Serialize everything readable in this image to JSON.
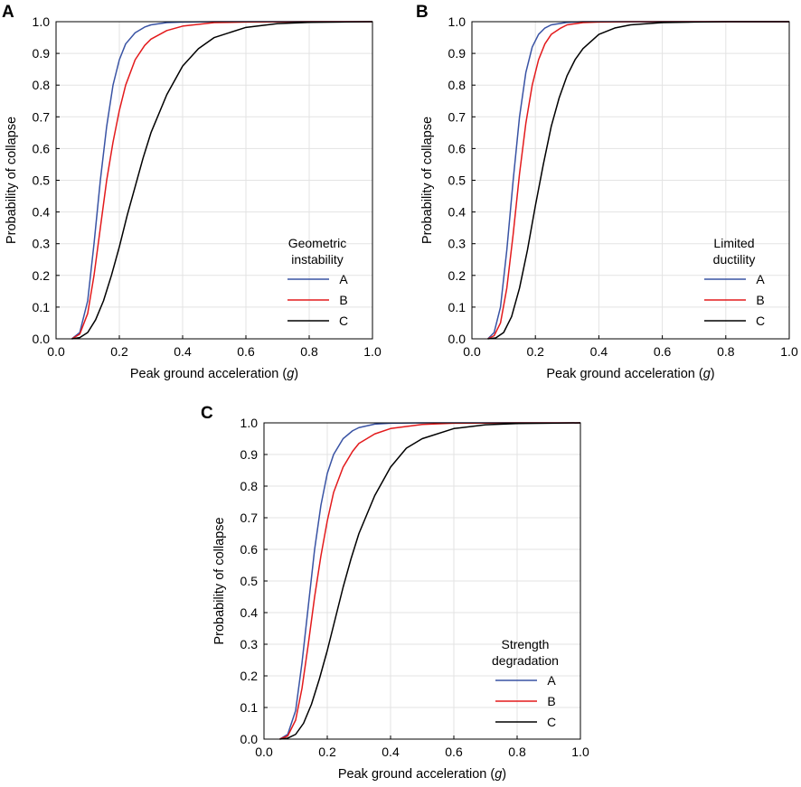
{
  "chart_data": [
    {
      "panel": "A",
      "type": "line",
      "xlabel": "Peak ground acceleration",
      "xlabel_unit": "g",
      "ylabel": "Probability of collapse",
      "xlim": [
        0.0,
        1.0
      ],
      "ylim": [
        0.0,
        1.0
      ],
      "xticks": [
        "0.0",
        "0.2",
        "0.4",
        "0.6",
        "0.8",
        "1.0"
      ],
      "yticks": [
        "0.0",
        "0.1",
        "0.2",
        "0.3",
        "0.4",
        "0.5",
        "0.6",
        "0.7",
        "0.8",
        "0.9",
        "1.0"
      ],
      "grid": true,
      "legend_title": [
        "Geometric",
        "instability"
      ],
      "legend_position": "center-right",
      "series": [
        {
          "name": "A",
          "color": "#3953a4",
          "x": [
            0.05,
            0.075,
            0.1,
            0.12,
            0.14,
            0.16,
            0.18,
            0.2,
            0.22,
            0.25,
            0.28,
            0.3,
            0.35,
            0.4,
            0.5,
            0.6,
            0.8,
            1.0
          ],
          "y": [
            0.0,
            0.02,
            0.12,
            0.3,
            0.5,
            0.67,
            0.8,
            0.88,
            0.93,
            0.965,
            0.983,
            0.99,
            0.997,
            0.999,
            1.0,
            1.0,
            1.0,
            1.0
          ]
        },
        {
          "name": "B",
          "color": "#e31a1c",
          "x": [
            0.05,
            0.075,
            0.1,
            0.12,
            0.14,
            0.16,
            0.18,
            0.2,
            0.22,
            0.25,
            0.28,
            0.3,
            0.35,
            0.4,
            0.5,
            0.6,
            0.8,
            1.0
          ],
          "y": [
            0.0,
            0.015,
            0.08,
            0.2,
            0.35,
            0.5,
            0.62,
            0.72,
            0.8,
            0.88,
            0.925,
            0.945,
            0.972,
            0.986,
            0.997,
            0.999,
            1.0,
            1.0
          ]
        },
        {
          "name": "C",
          "color": "#000000",
          "x": [
            0.05,
            0.075,
            0.1,
            0.125,
            0.15,
            0.175,
            0.2,
            0.225,
            0.25,
            0.275,
            0.3,
            0.35,
            0.4,
            0.45,
            0.5,
            0.6,
            0.7,
            0.8,
            0.9,
            1.0
          ],
          "y": [
            0.0,
            0.004,
            0.02,
            0.06,
            0.12,
            0.2,
            0.29,
            0.39,
            0.48,
            0.57,
            0.65,
            0.77,
            0.86,
            0.915,
            0.95,
            0.982,
            0.994,
            0.998,
            0.999,
            1.0
          ]
        }
      ]
    },
    {
      "panel": "B",
      "type": "line",
      "xlabel": "Peak ground acceleration",
      "xlabel_unit": "g",
      "ylabel": "Probability of collapse",
      "xlim": [
        0.0,
        1.0
      ],
      "ylim": [
        0.0,
        1.0
      ],
      "xticks": [
        "0.0",
        "0.2",
        "0.4",
        "0.6",
        "0.8",
        "1.0"
      ],
      "yticks": [
        "0.0",
        "0.1",
        "0.2",
        "0.3",
        "0.4",
        "0.5",
        "0.6",
        "0.7",
        "0.8",
        "0.9",
        "1.0"
      ],
      "grid": true,
      "legend_title": [
        "Limited",
        "ductility"
      ],
      "legend_position": "center-right",
      "series": [
        {
          "name": "A",
          "color": "#3953a4",
          "x": [
            0.05,
            0.07,
            0.09,
            0.11,
            0.13,
            0.15,
            0.17,
            0.19,
            0.21,
            0.23,
            0.25,
            0.3,
            0.35,
            0.4,
            0.5,
            1.0
          ],
          "y": [
            0.0,
            0.02,
            0.1,
            0.28,
            0.5,
            0.7,
            0.84,
            0.92,
            0.96,
            0.98,
            0.99,
            0.998,
            1.0,
            1.0,
            1.0,
            1.0
          ]
        },
        {
          "name": "B",
          "color": "#e31a1c",
          "x": [
            0.05,
            0.07,
            0.09,
            0.11,
            0.13,
            0.15,
            0.17,
            0.19,
            0.21,
            0.23,
            0.25,
            0.28,
            0.3,
            0.35,
            0.4,
            0.5,
            1.0
          ],
          "y": [
            0.0,
            0.01,
            0.05,
            0.16,
            0.33,
            0.52,
            0.68,
            0.8,
            0.88,
            0.93,
            0.96,
            0.98,
            0.99,
            0.997,
            0.999,
            1.0,
            1.0
          ]
        },
        {
          "name": "C",
          "color": "#000000",
          "x": [
            0.05,
            0.075,
            0.1,
            0.125,
            0.15,
            0.175,
            0.2,
            0.225,
            0.25,
            0.275,
            0.3,
            0.325,
            0.35,
            0.4,
            0.45,
            0.5,
            0.6,
            0.7,
            0.8,
            1.0
          ],
          "y": [
            0.0,
            0.003,
            0.02,
            0.07,
            0.16,
            0.28,
            0.42,
            0.55,
            0.67,
            0.76,
            0.83,
            0.88,
            0.915,
            0.96,
            0.98,
            0.99,
            0.997,
            0.999,
            1.0,
            1.0
          ]
        }
      ]
    },
    {
      "panel": "C",
      "type": "line",
      "xlabel": "Peak ground acceleration",
      "xlabel_unit": "g",
      "ylabel": "Probability of collapse",
      "xlim": [
        0.0,
        1.0
      ],
      "ylim": [
        0.0,
        1.0
      ],
      "xticks": [
        "0.0",
        "0.2",
        "0.4",
        "0.6",
        "0.8",
        "1.0"
      ],
      "yticks": [
        "0.0",
        "0.1",
        "0.2",
        "0.3",
        "0.4",
        "0.5",
        "0.6",
        "0.7",
        "0.8",
        "0.9",
        "1.0"
      ],
      "grid": true,
      "legend_title": [
        "Strength",
        "degradation"
      ],
      "legend_position": "bottom-right",
      "series": [
        {
          "name": "A",
          "color": "#3953a4",
          "x": [
            0.05,
            0.075,
            0.1,
            0.12,
            0.14,
            0.16,
            0.18,
            0.2,
            0.22,
            0.25,
            0.28,
            0.3,
            0.35,
            0.4,
            0.5,
            0.6,
            1.0
          ],
          "y": [
            0.0,
            0.015,
            0.09,
            0.24,
            0.42,
            0.6,
            0.74,
            0.84,
            0.9,
            0.95,
            0.975,
            0.985,
            0.996,
            0.999,
            1.0,
            1.0,
            1.0
          ]
        },
        {
          "name": "B",
          "color": "#e31a1c",
          "x": [
            0.05,
            0.075,
            0.1,
            0.12,
            0.14,
            0.16,
            0.18,
            0.2,
            0.22,
            0.25,
            0.28,
            0.3,
            0.35,
            0.4,
            0.5,
            0.6,
            0.8,
            1.0
          ],
          "y": [
            0.0,
            0.01,
            0.06,
            0.16,
            0.3,
            0.45,
            0.58,
            0.69,
            0.78,
            0.86,
            0.91,
            0.935,
            0.965,
            0.982,
            0.995,
            0.999,
            1.0,
            1.0
          ]
        },
        {
          "name": "C",
          "color": "#000000",
          "x": [
            0.05,
            0.075,
            0.1,
            0.125,
            0.15,
            0.175,
            0.2,
            0.225,
            0.25,
            0.275,
            0.3,
            0.35,
            0.4,
            0.45,
            0.5,
            0.6,
            0.7,
            0.8,
            0.9,
            1.0
          ],
          "y": [
            0.0,
            0.003,
            0.015,
            0.05,
            0.11,
            0.19,
            0.28,
            0.38,
            0.48,
            0.57,
            0.65,
            0.77,
            0.86,
            0.92,
            0.95,
            0.982,
            0.994,
            0.998,
            0.999,
            1.0
          ]
        }
      ]
    }
  ]
}
